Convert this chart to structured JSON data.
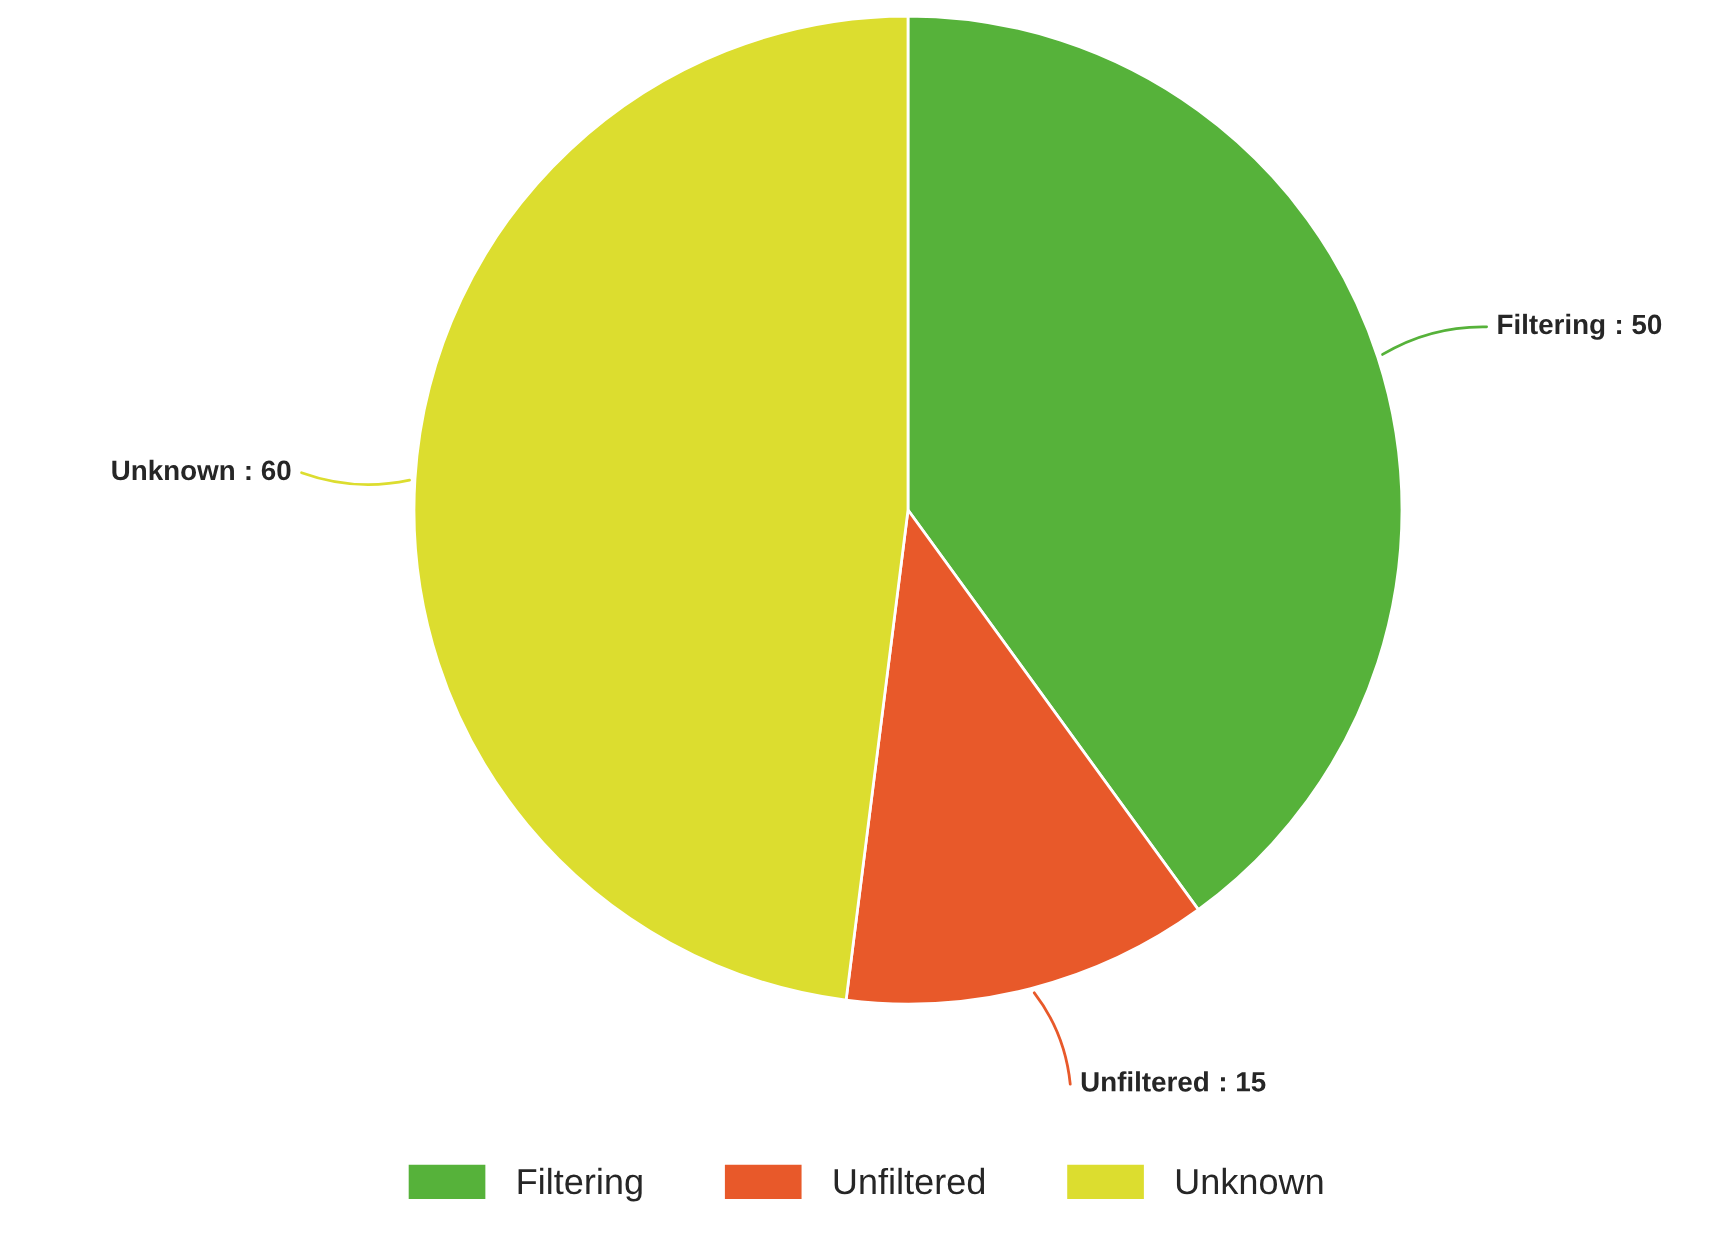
{
  "chart_data": {
    "type": "pie",
    "categories": [
      "Filtering",
      "Unfiltered",
      "Unknown"
    ],
    "values": [
      50,
      15,
      60
    ],
    "colors": [
      "#56b23a",
      "#e8592a",
      "#dcdd2f"
    ],
    "value_labels": [
      ": 50",
      ": 15",
      ": 60"
    ],
    "legend": "bottom"
  }
}
